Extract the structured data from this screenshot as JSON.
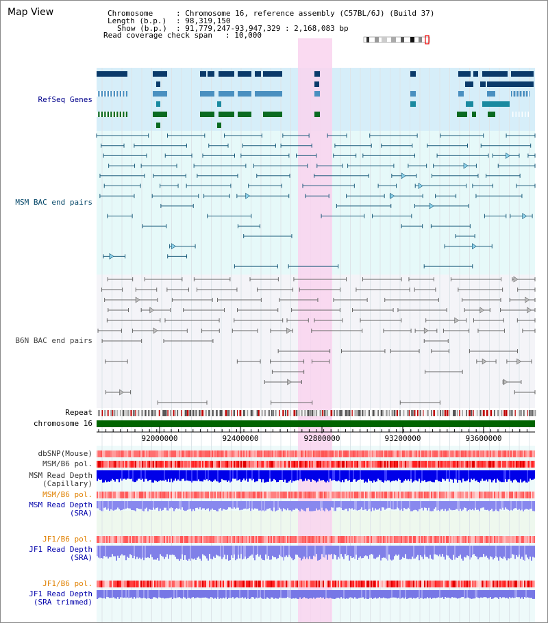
{
  "title": "Map View",
  "info": {
    "chromosome_label": "Chromosome",
    "chromosome_value": ": Chromosome 16, reference assembly (C57BL/6J) (Build 37)",
    "length_label": "Length (b.p.)",
    "length_value": ": 98,319,150",
    "show_label": "Show (b.p.)",
    "show_value": ": 91,779,247-93,947,329 : 2,168,083 bp",
    "span_label": "Read coverage check span",
    "span_value": ": 10,000"
  },
  "tracks": {
    "refseq": "RefSeq Genes",
    "msm_bac": "MSM BAC end pairs",
    "b6n_bac": "B6N BAC end pairs",
    "repeat": "Repeat",
    "chromosome": "chromosome 16",
    "dbsnp": "dbSNP(Mouse)",
    "msm_b6_pol_1": "MSM/B6 pol.",
    "msm_depth_cap_1": "MSM Read Depth",
    "msm_depth_cap_2": "(Capillary)",
    "msm_b6_pol_2": "MSM/B6 pol.",
    "msm_depth_sra_1": "MSM Read Depth",
    "msm_depth_sra_2": "(SRA)",
    "jf1_b6_pol_1": "JF1/B6 pol.",
    "jf1_depth_sra_1": "JF1 Read Depth",
    "jf1_depth_sra_2": "(SRA)",
    "jf1_b6_pol_2": "JF1/B6 pol.",
    "jf1_depth_trim_1": "JF1 Read Depth",
    "jf1_depth_trim_2": "(SRA trimmed)"
  },
  "ruler": {
    "ticks": [
      "92000000",
      "92400000",
      "92800000",
      "93200000",
      "93600000"
    ]
  },
  "colors": {
    "refseq_label": "#00008b",
    "msm_label": "#004466",
    "b6n_label": "#444444",
    "pol_label_orange": "#e08000",
    "depth_label_blue": "#0000aa",
    "highlight": "#f9d3ee",
    "chromosome_bar": "#006400",
    "refseq_bg": "#d6eef9",
    "msm_bg": "#e6f9f9",
    "b6n_bg": "#f4f4f8"
  }
}
